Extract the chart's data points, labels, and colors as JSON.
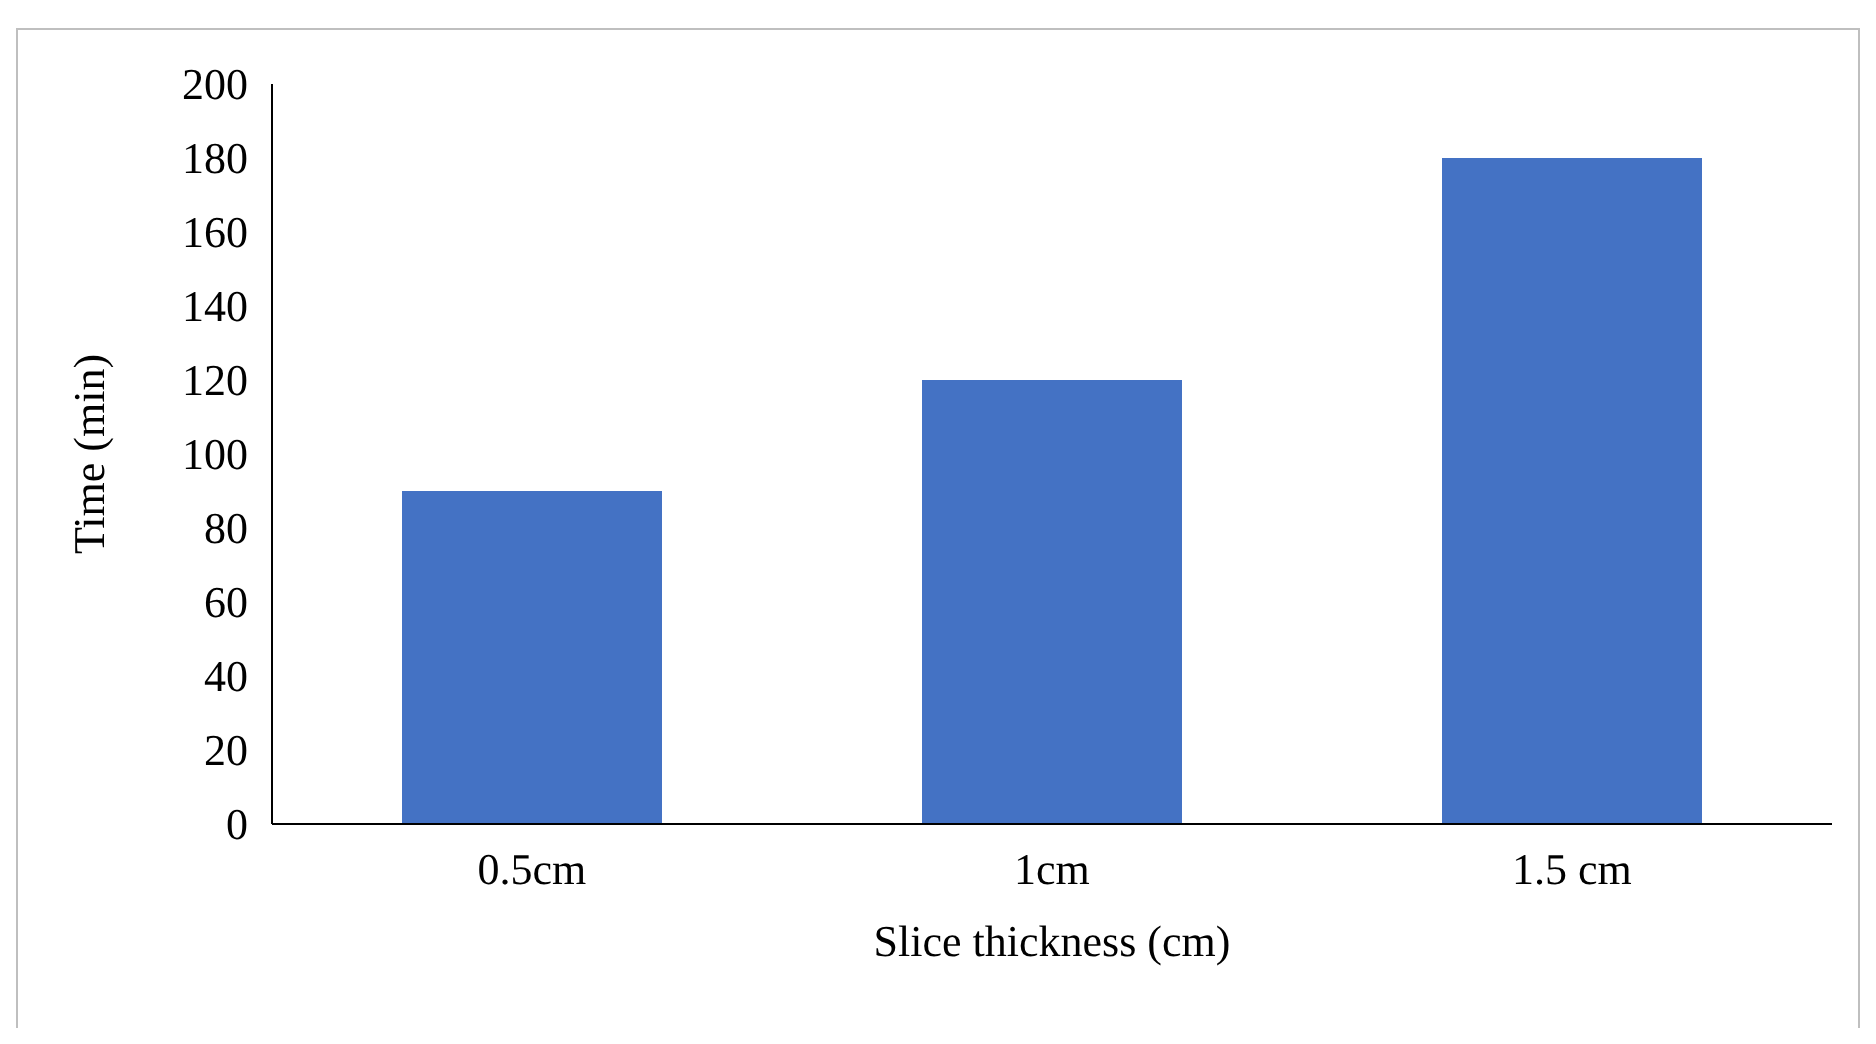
{
  "chart_data": {
    "type": "bar",
    "categories": [
      "0.5cm",
      "1cm",
      "1.5 cm"
    ],
    "values": [
      90,
      120,
      180
    ],
    "color": "#4472c4",
    "xlabel": "Slice thickness (cm)",
    "ylabel": "Time (min)",
    "ylim": [
      0,
      200
    ],
    "yticks": [
      0,
      20,
      40,
      60,
      80,
      100,
      120,
      140,
      160,
      180,
      200
    ],
    "grid": false
  }
}
